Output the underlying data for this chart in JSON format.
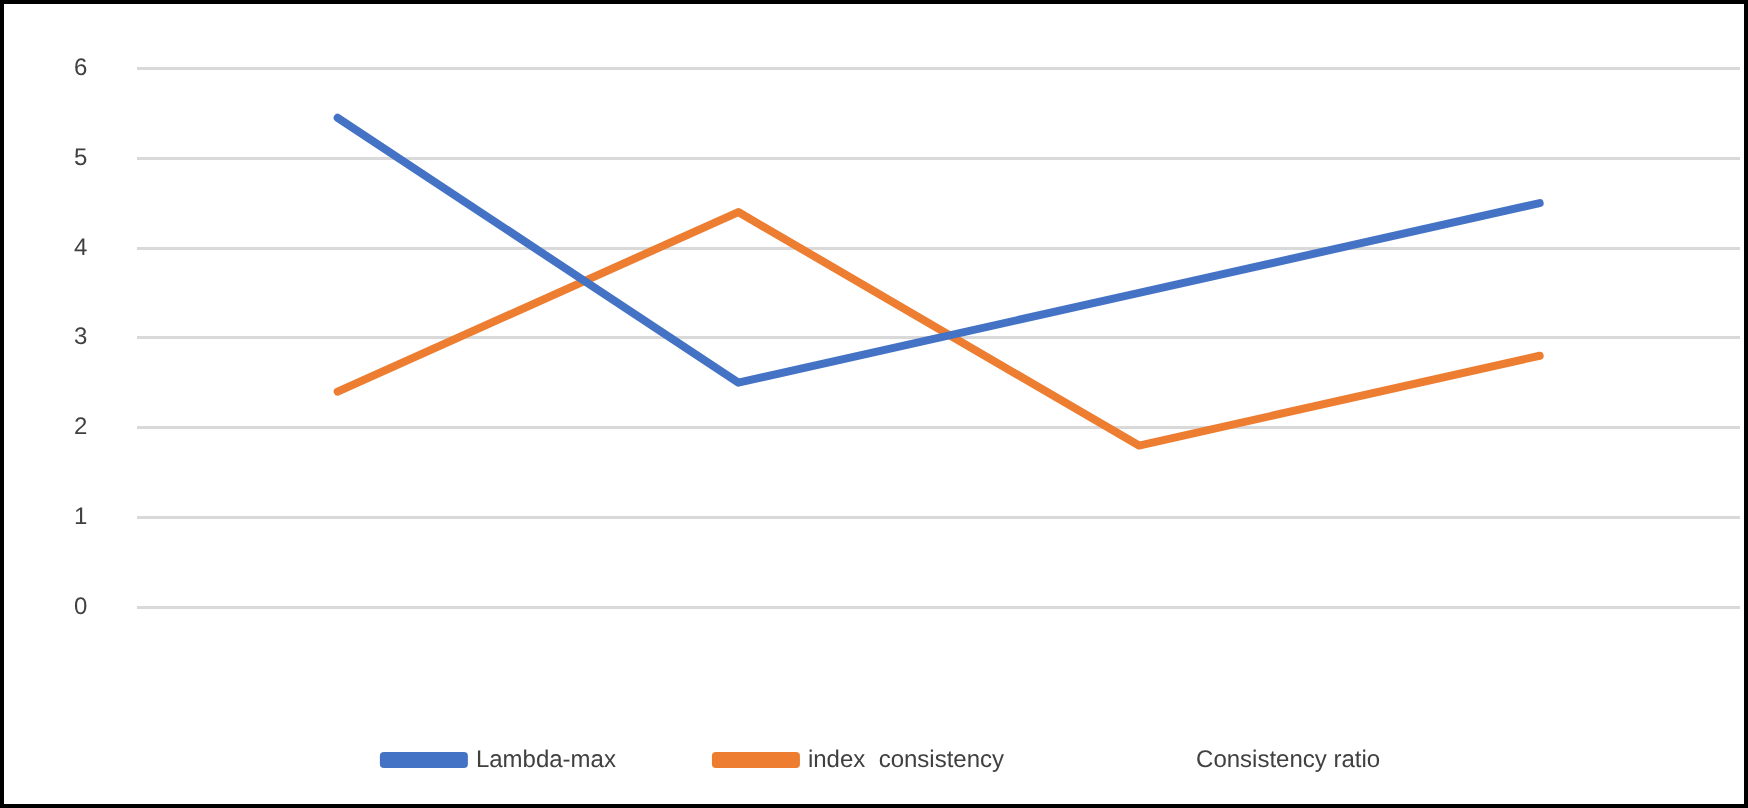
{
  "chart_data": {
    "type": "line",
    "categories": [
      null,
      null,
      null,
      null
    ],
    "series": [
      {
        "name": "Lambda-max",
        "color": "#4472c4",
        "values": [
          5.45,
          2.5,
          3.5,
          4.5
        ]
      },
      {
        "name": "index  consistency",
        "color": "#ed7d31",
        "values": [
          2.4,
          4.4,
          1.8,
          2.8
        ]
      },
      {
        "name": "Consistency ratio",
        "values": [
          null,
          null,
          null,
          null
        ]
      }
    ],
    "ylim": [
      0,
      6
    ],
    "yticks": [
      0,
      1,
      2,
      3,
      4,
      5,
      6
    ],
    "grid": "y",
    "legend": "bottom",
    "marker": "none",
    "line_style": "solid"
  }
}
